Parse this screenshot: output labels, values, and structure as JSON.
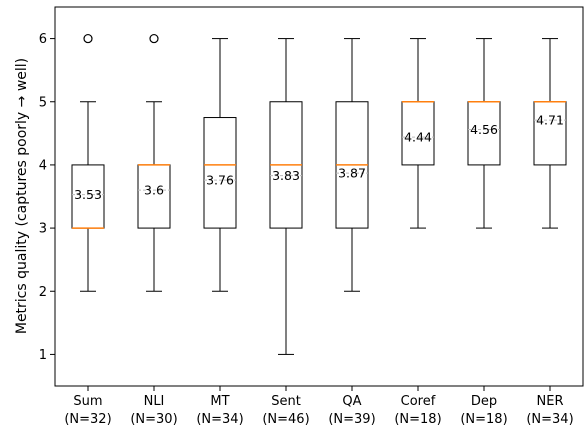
{
  "chart_data": {
    "type": "boxplot",
    "ylabel": "Metrics quality (captures poorly → well)",
    "ylim": [
      0.5,
      6.5
    ],
    "yticks": [
      1,
      2,
      3,
      4,
      5,
      6
    ],
    "grid": false,
    "categories": [
      {
        "name": "Sum",
        "n_label": "(N=32)",
        "whisker_low": 2,
        "q1": 3,
        "median": 3,
        "q3": 4,
        "whisker_high": 5,
        "mean": 3.53,
        "mean_label": "3.53",
        "outliers": [
          6
        ]
      },
      {
        "name": "NLI",
        "n_label": "(N=30)",
        "whisker_low": 2,
        "q1": 3,
        "median": 4,
        "q3": 4,
        "whisker_high": 5,
        "mean": 3.6,
        "mean_label": "3.6",
        "outliers": [
          6
        ]
      },
      {
        "name": "MT",
        "n_label": "(N=34)",
        "whisker_low": 2,
        "q1": 3,
        "median": 4,
        "q3": 4.75,
        "whisker_high": 6,
        "mean": 3.76,
        "mean_label": "3.76",
        "outliers": []
      },
      {
        "name": "Sent",
        "n_label": "(N=46)",
        "whisker_low": 1,
        "q1": 3,
        "median": 4,
        "q3": 5,
        "whisker_high": 6,
        "mean": 3.83,
        "mean_label": "3.83",
        "outliers": []
      },
      {
        "name": "QA",
        "n_label": "(N=39)",
        "whisker_low": 2,
        "q1": 3,
        "median": 4,
        "q3": 5,
        "whisker_high": 6,
        "mean": 3.87,
        "mean_label": "3.87",
        "outliers": []
      },
      {
        "name": "Coref",
        "n_label": "(N=18)",
        "whisker_low": 3,
        "q1": 4,
        "median": 5,
        "q3": 5,
        "whisker_high": 6,
        "mean": 4.44,
        "mean_label": "4.44",
        "outliers": []
      },
      {
        "name": "Dep",
        "n_label": "(N=18)",
        "whisker_low": 3,
        "q1": 4,
        "median": 5,
        "q3": 5,
        "whisker_high": 6,
        "mean": 4.56,
        "mean_label": "4.56",
        "outliers": []
      },
      {
        "name": "NER",
        "n_label": "(N=34)",
        "whisker_low": 3,
        "q1": 4,
        "median": 5,
        "q3": 5,
        "whisker_high": 6,
        "mean": 4.71,
        "mean_label": "4.71",
        "outliers": []
      }
    ],
    "colors": {
      "box": "#000000",
      "median": "#ff7f0e",
      "mean_line": "#bbbbbb",
      "background": "#ffffff"
    }
  }
}
